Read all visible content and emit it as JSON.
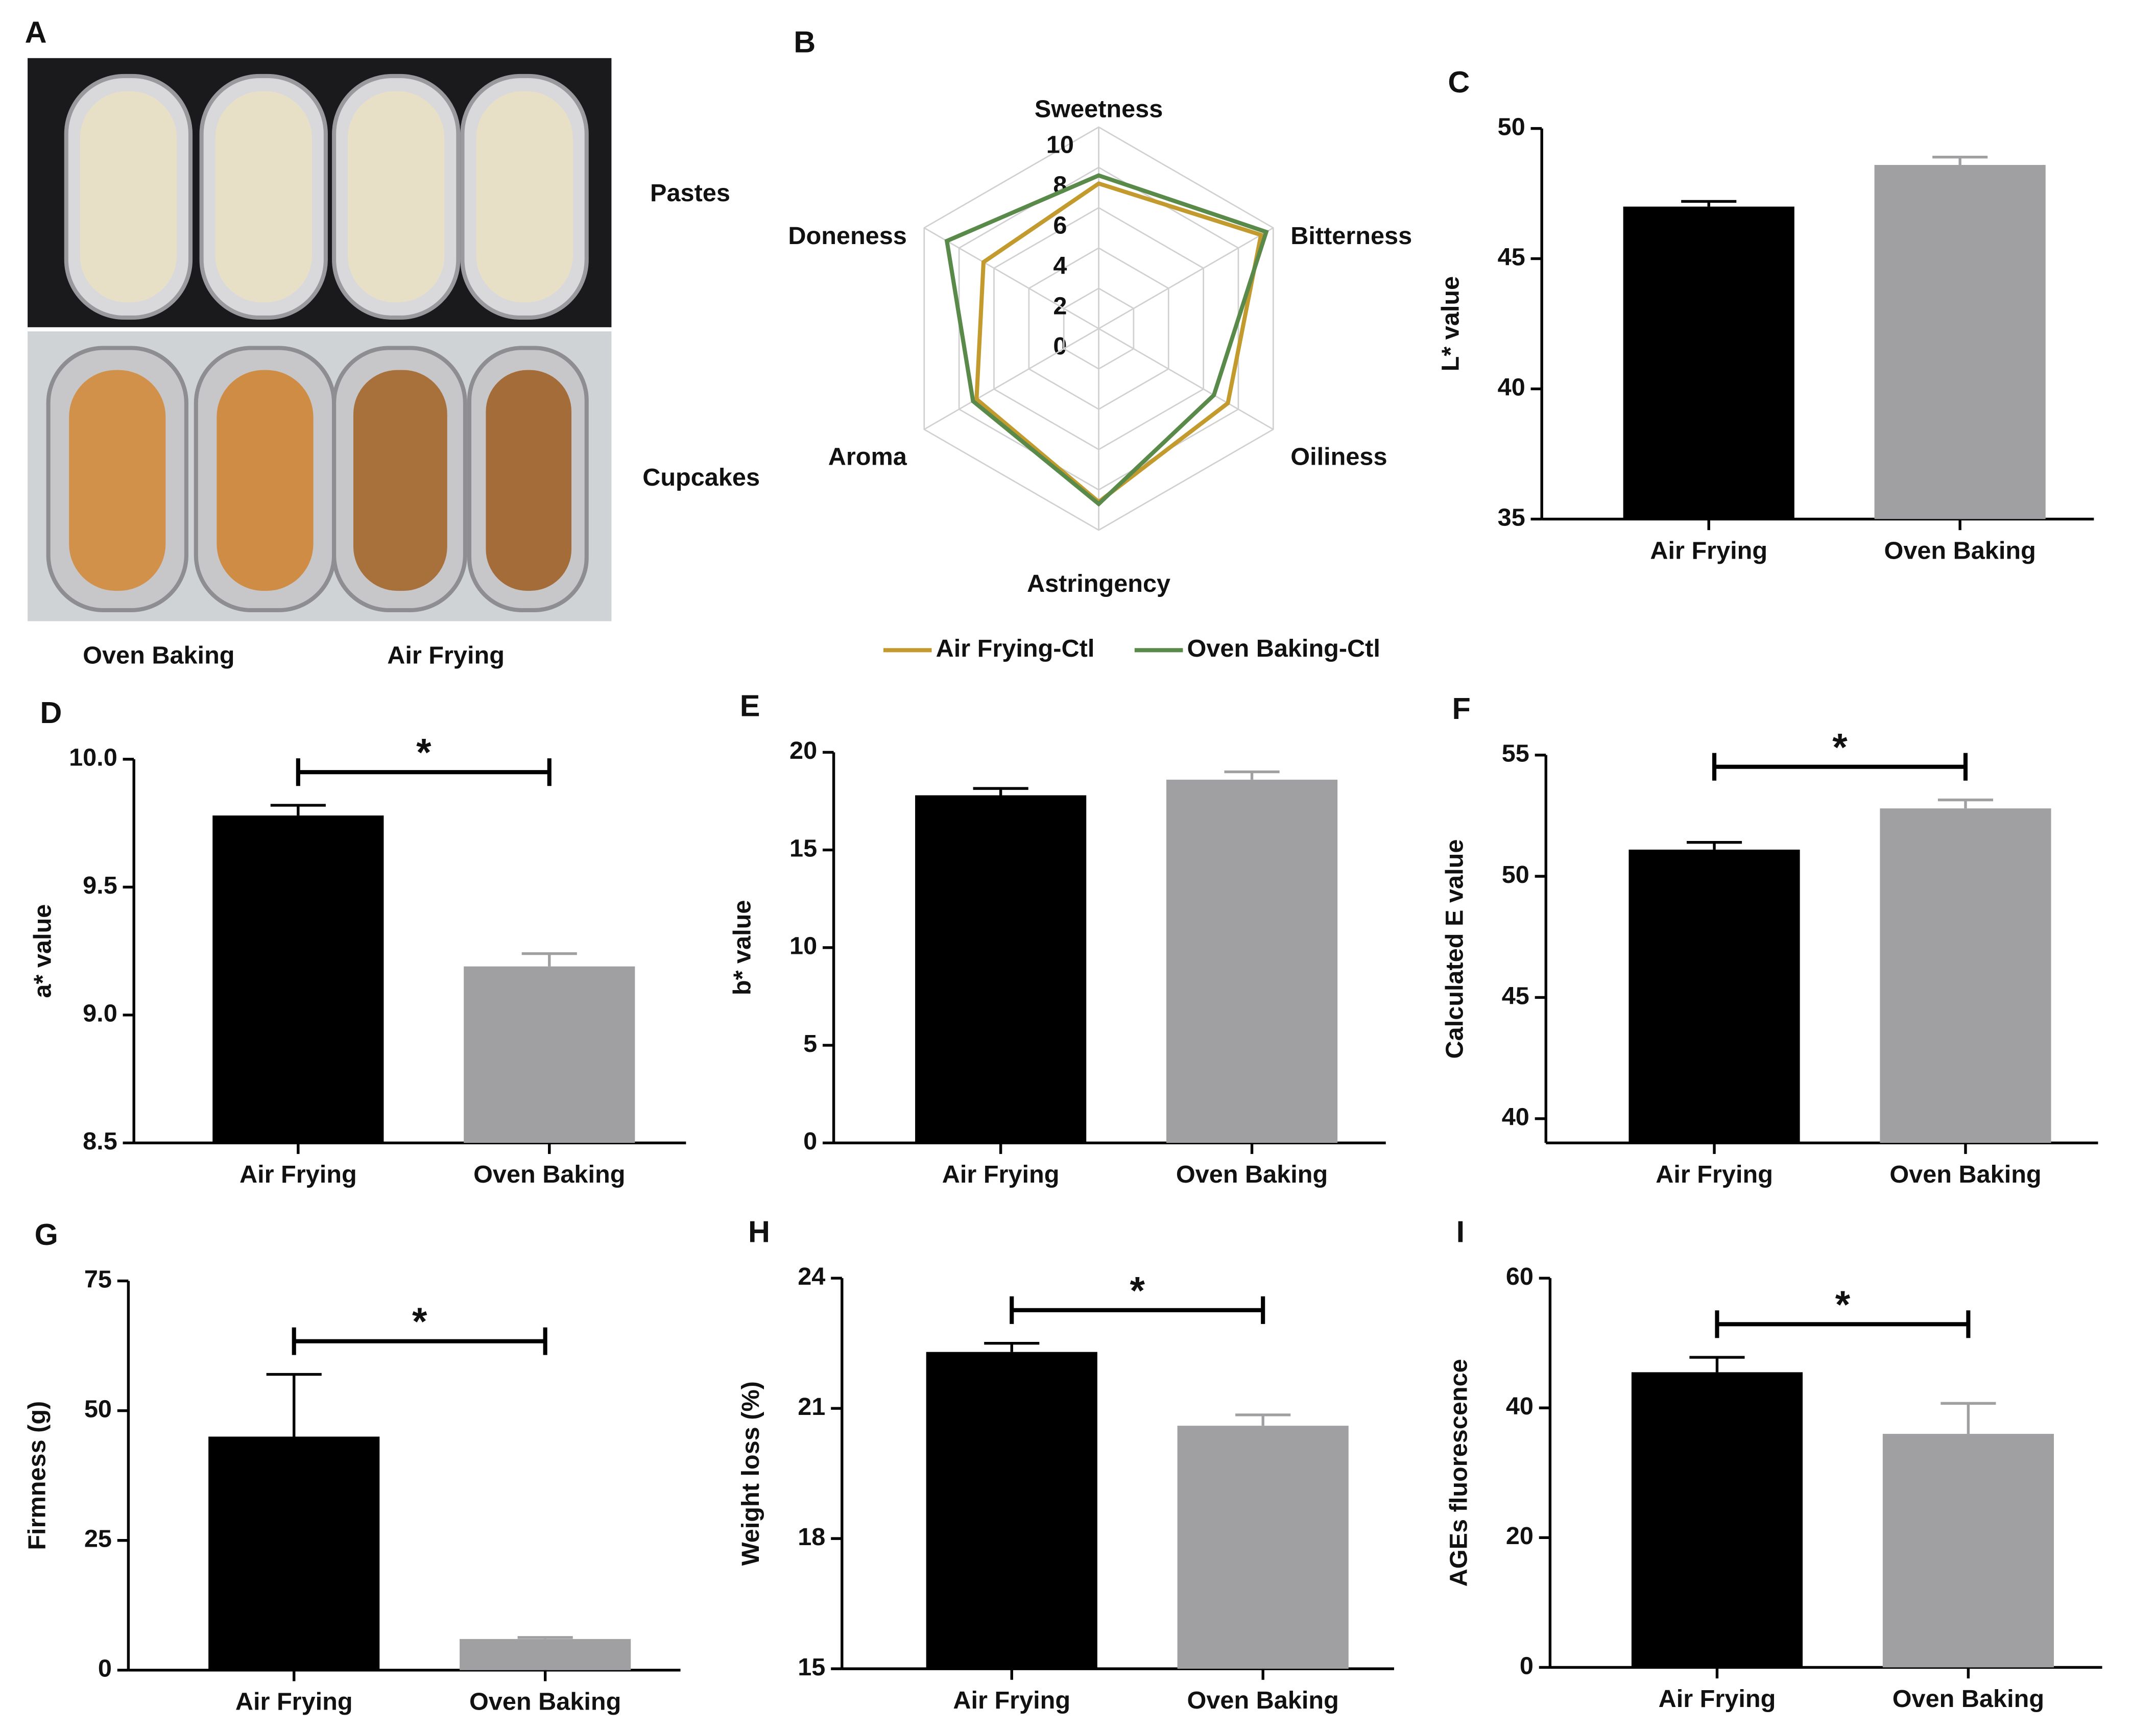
{
  "panel_a": {
    "label": "A",
    "labels": [
      "Pastes",
      "Cupcakes",
      "Oven Baking",
      "Air Frying"
    ]
  },
  "chart_data": [
    {
      "type": "radar",
      "label": "B",
      "axes": [
        "Sweetness",
        "Bitterness",
        "Oiliness",
        "Astringency",
        "Aroma",
        "Doneness"
      ],
      "rlim": [
        0,
        10
      ],
      "rticks": [
        0,
        2,
        4,
        6,
        8,
        10
      ],
      "legend": "bottom",
      "series": [
        {
          "name": "Air Frying-Ctl",
          "color": "#c39a2d",
          "values": [
            7.2,
            9.3,
            7.4,
            8.6,
            7.0,
            6.6
          ]
        },
        {
          "name": "Oven Baking-Ctl",
          "color": "#5a8a4a",
          "values": [
            7.6,
            9.6,
            6.6,
            8.7,
            7.2,
            8.7
          ]
        }
      ]
    },
    {
      "type": "bar",
      "label": "C",
      "ylabel": "L* value",
      "categories": [
        "Air Frying",
        "Oven Baking"
      ],
      "values": [
        47.0,
        48.6
      ],
      "errors": [
        0.2,
        0.3
      ],
      "colors": [
        "#000000",
        "#a0a0a2"
      ],
      "ylim": [
        35,
        50
      ],
      "yticks": [
        35,
        40,
        45,
        50
      ]
    },
    {
      "type": "bar",
      "label": "D",
      "ylabel": "a* value",
      "categories": [
        "Air Frying",
        "Oven Baking"
      ],
      "values": [
        9.78,
        9.19
      ],
      "errors": [
        0.04,
        0.05
      ],
      "colors": [
        "#000000",
        "#a0a0a2"
      ],
      "ylim": [
        8.5,
        10
      ],
      "yticks": [
        8.5,
        {
          "value": 9,
          "label": "9.0"
        },
        9.5,
        {
          "value": 10,
          "label": "10.0"
        }
      ],
      "significance": "*"
    },
    {
      "type": "bar",
      "label": "E",
      "ylabel": "b* value",
      "categories": [
        "Air Frying",
        "Oven Baking"
      ],
      "values": [
        17.8,
        18.6
      ],
      "errors": [
        0.35,
        0.4
      ],
      "colors": [
        "#000000",
        "#a0a0a2"
      ],
      "ylim": [
        0,
        20
      ],
      "yticks": [
        0,
        5,
        10,
        15,
        20
      ]
    },
    {
      "type": "bar",
      "label": "F",
      "ylabel": "Calculated  E value",
      "categories": [
        "Air Frying",
        "Oven Baking"
      ],
      "values": [
        51.1,
        52.8
      ],
      "errors": [
        0.3,
        0.35
      ],
      "colors": [
        "#000000",
        "#a0a0a2"
      ],
      "ylim": [
        39,
        55
      ],
      "yticks": [
        40,
        45,
        50,
        55
      ],
      "significance": "*"
    },
    {
      "type": "bar",
      "label": "G",
      "ylabel": "Firmness (g)",
      "categories": [
        "Air Frying",
        "Oven Baking"
      ],
      "values": [
        45,
        6
      ],
      "errors": [
        12,
        0.3
      ],
      "colors": [
        "#000000",
        "#a0a0a2"
      ],
      "ylim": [
        0,
        75
      ],
      "yticks": [
        0,
        25,
        50,
        75
      ],
      "significance": "*"
    },
    {
      "type": "bar",
      "label": "H",
      "ylabel": "Weight loss (%)",
      "categories": [
        "Air Frying",
        "Oven Baking"
      ],
      "values": [
        22.3,
        20.6
      ],
      "errors": [
        0.2,
        0.25
      ],
      "colors": [
        "#000000",
        "#a0a0a2"
      ],
      "ylim": [
        15,
        24
      ],
      "yticks": [
        15,
        18,
        21,
        24
      ],
      "significance": "*"
    },
    {
      "type": "bar",
      "label": "I",
      "ylabel": "AGEs fluorescence",
      "categories": [
        "Air Frying",
        "Oven Baking"
      ],
      "values": [
        45.5,
        36
      ],
      "errors": [
        2.3,
        4.7
      ],
      "colors": [
        "#000000",
        "#a0a0a2"
      ],
      "ylim": [
        0,
        60
      ],
      "yticks": [
        0,
        20,
        40,
        60
      ],
      "significance": "*"
    }
  ]
}
